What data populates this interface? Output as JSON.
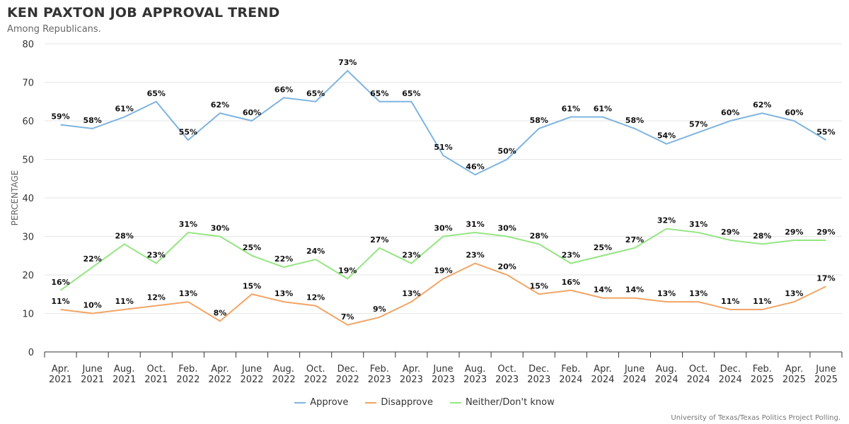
{
  "title": "KEN PAXTON JOB APPROVAL TREND",
  "subtitle": "Among Republicans.",
  "source": "University of Texas/Texas Politics Project Polling.",
  "chart_data": {
    "type": "line",
    "ylabel": "PERCENTAGE",
    "xlabel": "",
    "ylim": [
      0,
      80
    ],
    "yticks": [
      0,
      10,
      20,
      30,
      40,
      50,
      60,
      70,
      80
    ],
    "categories": [
      [
        "Apr.",
        "2021"
      ],
      [
        "June",
        "2021"
      ],
      [
        "Aug.",
        "2021"
      ],
      [
        "Oct.",
        "2021"
      ],
      [
        "Feb.",
        "2022"
      ],
      [
        "Apr.",
        "2022"
      ],
      [
        "June",
        "2022"
      ],
      [
        "Aug.",
        "2022"
      ],
      [
        "Oct.",
        "2022"
      ],
      [
        "Dec.",
        "2022"
      ],
      [
        "Feb.",
        "2023"
      ],
      [
        "Apr.",
        "2023"
      ],
      [
        "June",
        "2023"
      ],
      [
        "Aug.",
        "2023"
      ],
      [
        "Oct.",
        "2023"
      ],
      [
        "Dec.",
        "2023"
      ],
      [
        "Feb.",
        "2024"
      ],
      [
        "Apr.",
        "2024"
      ],
      [
        "June",
        "2024"
      ],
      [
        "Aug.",
        "2024"
      ],
      [
        "Oct.",
        "2024"
      ],
      [
        "Dec.",
        "2024"
      ],
      [
        "Feb.",
        "2025"
      ],
      [
        "Apr.",
        "2025"
      ],
      [
        "June",
        "2025"
      ]
    ],
    "series": [
      {
        "name": "Approve",
        "color": "#7fb4e0",
        "values": [
          59,
          58,
          61,
          65,
          55,
          62,
          60,
          66,
          65,
          73,
          65,
          65,
          51,
          46,
          50,
          58,
          61,
          61,
          58,
          54,
          57,
          60,
          62,
          60,
          55
        ]
      },
      {
        "name": "Disapprove",
        "color": "#f2a566",
        "values": [
          11,
          10,
          11,
          12,
          13,
          8,
          15,
          13,
          12,
          7,
          9,
          13,
          19,
          23,
          20,
          15,
          16,
          14,
          14,
          13,
          13,
          11,
          11,
          13,
          17
        ]
      },
      {
        "name": "Neither/Don't know",
        "color": "#95e583",
        "values": [
          16,
          22,
          28,
          23,
          31,
          30,
          25,
          22,
          24,
          19,
          27,
          23,
          30,
          31,
          30,
          28,
          23,
          25,
          27,
          32,
          31,
          29,
          28,
          29,
          29
        ]
      }
    ],
    "label_suffix": "%",
    "legend_position": "bottom-center",
    "grid": true
  }
}
